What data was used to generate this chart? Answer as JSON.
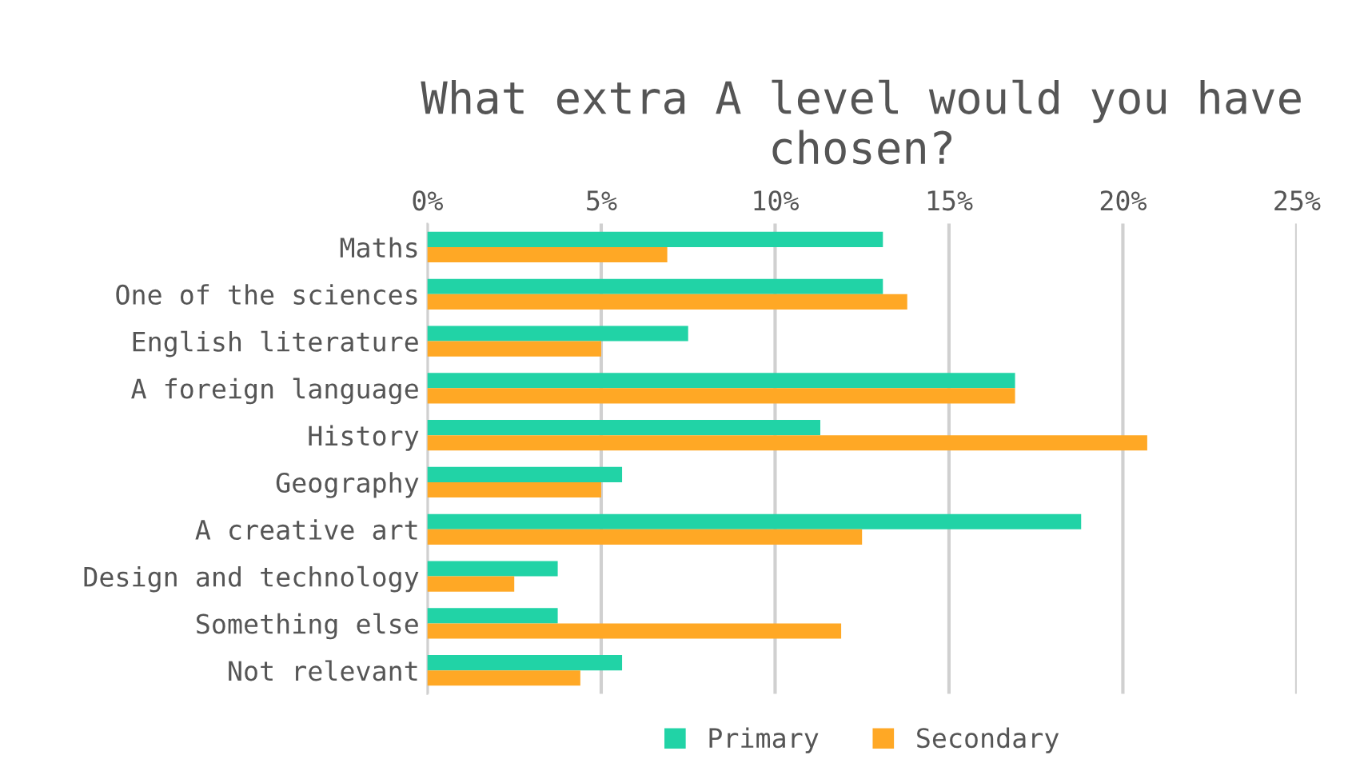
{
  "chart_data": {
    "type": "bar",
    "orientation": "horizontal",
    "title": "What extra A level would you have chosen?",
    "categories": [
      "Maths",
      "One of the sciences",
      "English literature",
      "A foreign language",
      "History",
      "Geography",
      "A creative art",
      "Design and technology",
      "Something else",
      "Not relevant"
    ],
    "series": [
      {
        "name": "Primary",
        "color": "#21d3a6",
        "values": [
          13.1,
          13.1,
          7.5,
          16.9,
          11.3,
          5.6,
          18.8,
          3.75,
          3.75,
          5.6
        ]
      },
      {
        "name": "Secondary",
        "color": "#ffa825",
        "values": [
          6.9,
          13.8,
          5.0,
          16.9,
          20.7,
          5.0,
          12.5,
          2.5,
          11.9,
          4.4
        ]
      }
    ],
    "xlim": [
      0,
      25
    ],
    "xticks": [
      {
        "value": 0,
        "label": "0%"
      },
      {
        "value": 5,
        "label": "5%"
      },
      {
        "value": 10,
        "label": "10%"
      },
      {
        "value": 15,
        "label": "15%"
      },
      {
        "value": 20,
        "label": "20%"
      },
      {
        "value": 25,
        "label": "25%"
      }
    ],
    "grid": "x",
    "legend": "bottom"
  }
}
